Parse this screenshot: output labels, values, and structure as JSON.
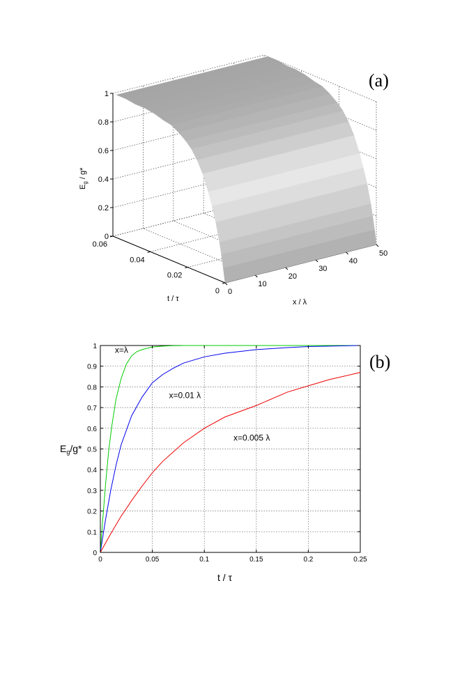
{
  "chart_data": [
    {
      "panel": "(a)",
      "type": "surface",
      "xlabel": "x / λ",
      "ylabel": "t / τ",
      "zlabel": "E_g / g*",
      "zlabel_main": "E",
      "zlabel_sub": "g",
      "zlabel_rest": " / g*",
      "xlim": [
        0,
        50
      ],
      "ylim": [
        0,
        0.06
      ],
      "zlim": [
        0,
        1
      ],
      "x_ticks": [
        "0",
        "10",
        "20",
        "30",
        "40",
        "50"
      ],
      "y_ticks": [
        "0",
        "0.02",
        "0.04",
        "0.06"
      ],
      "z_ticks": [
        "0",
        "0.2",
        "0.4",
        "0.6",
        "0.8",
        "1"
      ],
      "x_tick_values": [
        0,
        10,
        20,
        30,
        40,
        50
      ],
      "y_tick_values": [
        0,
        0.02,
        0.04,
        0.06
      ],
      "z_tick_values": [
        0,
        0.2,
        0.4,
        0.6,
        0.8,
        1
      ],
      "surface_x": [
        0,
        50
      ],
      "surface_t": [
        0,
        0.001,
        0.002,
        0.003,
        0.005,
        0.007,
        0.009,
        0.012,
        0.015,
        0.018,
        0.021,
        0.025,
        0.029,
        0.033,
        0.038,
        0.043,
        0.048,
        0.053,
        0.058
      ],
      "surface_z": [
        0,
        0.1,
        0.19,
        0.27,
        0.4,
        0.5,
        0.59,
        0.7,
        0.78,
        0.84,
        0.88,
        0.92,
        0.95,
        0.96,
        0.98,
        0.99,
        0.99,
        1.0,
        1.0
      ],
      "grid": true,
      "colors": {
        "surface_dark": "#8a8a8a",
        "surface_light": "#eeeeee"
      }
    },
    {
      "panel": "(b)",
      "type": "line",
      "xlabel": "t / τ",
      "ylabel": "E_g/g*",
      "ylabel_main": "E",
      "ylabel_sub": "g",
      "ylabel_rest": "/g*",
      "xlim": [
        0,
        0.25
      ],
      "ylim": [
        0,
        1
      ],
      "x_ticks": [
        "0",
        "0.05",
        "0.1",
        "0.15",
        "0.2",
        "0.25"
      ],
      "y_ticks": [
        "0",
        "0.1",
        "0.2",
        "0.3",
        "0.4",
        "0.5",
        "0.6",
        "0.7",
        "0.8",
        "0.9",
        "1"
      ],
      "x_tick_values": [
        0,
        0.05,
        0.1,
        0.15,
        0.2,
        0.25
      ],
      "y_tick_values": [
        0,
        0.1,
        0.2,
        0.3,
        0.4,
        0.5,
        0.6,
        0.7,
        0.8,
        0.9,
        1
      ],
      "grid": true,
      "annotations": [
        {
          "text": "x=λ",
          "x": 0.014,
          "y": 0.965
        },
        {
          "text": "x=0.01 λ",
          "x": 0.066,
          "y": 0.745
        },
        {
          "text": "x=0.005 λ",
          "x": 0.128,
          "y": 0.54
        }
      ],
      "series": [
        {
          "color": "#00cc00",
          "x": [
            0,
            0.002,
            0.005,
            0.008,
            0.011,
            0.015,
            0.02,
            0.025,
            0.03,
            0.035,
            0.04,
            0.05,
            0.06,
            0.07,
            0.08,
            0.09,
            0.1,
            0.15,
            0.2,
            0.25
          ],
          "y": [
            0,
            0.14,
            0.33,
            0.49,
            0.61,
            0.74,
            0.84,
            0.91,
            0.95,
            0.97,
            0.98,
            0.993,
            0.997,
            0.999,
            1,
            1,
            1,
            1,
            1,
            1
          ]
        },
        {
          "color": "#0000ee",
          "x": [
            0,
            0.005,
            0.01,
            0.015,
            0.02,
            0.03,
            0.04,
            0.05,
            0.06,
            0.07,
            0.08,
            0.1,
            0.12,
            0.15,
            0.18,
            0.2,
            0.25
          ],
          "y": [
            0,
            0.16,
            0.3,
            0.42,
            0.52,
            0.66,
            0.75,
            0.82,
            0.86,
            0.89,
            0.915,
            0.945,
            0.963,
            0.98,
            0.99,
            0.995,
            1
          ]
        },
        {
          "color": "#ee0000",
          "x": [
            0,
            0.01,
            0.02,
            0.03,
            0.04,
            0.05,
            0.06,
            0.08,
            0.1,
            0.12,
            0.15,
            0.18,
            0.2,
            0.22,
            0.25
          ],
          "y": [
            0,
            0.09,
            0.175,
            0.25,
            0.32,
            0.385,
            0.44,
            0.53,
            0.6,
            0.655,
            0.71,
            0.775,
            0.805,
            0.835,
            0.87
          ]
        }
      ]
    }
  ],
  "panel_labels": {
    "a": "(a)",
    "b": "(b)"
  }
}
